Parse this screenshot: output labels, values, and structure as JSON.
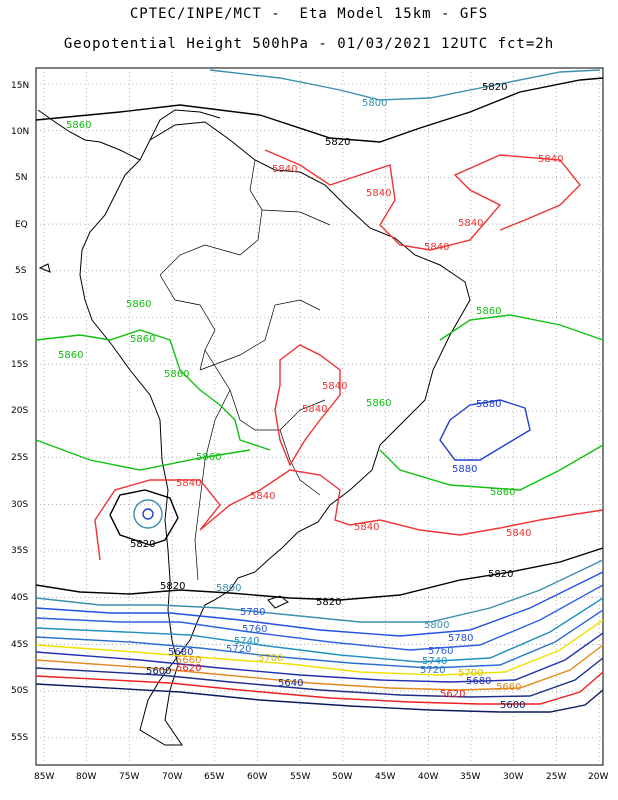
{
  "title": {
    "line1": "CPTEC/INPE/MCT -  Eta Model 15km - GFS",
    "line2": "Geopotential Height 500hPa - 01/03/2021 12UTC fct=2h"
  },
  "axes": {
    "lat_labels": [
      "15N",
      "10N",
      "5N",
      "EQ",
      "5S",
      "10S",
      "15S",
      "20S",
      "25S",
      "30S",
      "35S",
      "40S",
      "45S",
      "50S",
      "55S"
    ],
    "lon_labels": [
      "85W",
      "80W",
      "75W",
      "70W",
      "65W",
      "60W",
      "55W",
      "50W",
      "45W",
      "40W",
      "35W",
      "30W",
      "25W",
      "20W"
    ]
  },
  "colors": {
    "c5580": "#0a1a5e",
    "c5600": "#1a1a1a",
    "c5620": "#ee2020",
    "c5640": "#1c2e8a",
    "c5660": "#e08a20",
    "c5680": "#2030b0",
    "c5700": "#f0e000",
    "c5720": "#2a6fd0",
    "c5740": "#2090c0",
    "c5760": "#3060e0",
    "c5780": "#2050e0",
    "c5800": "#3a90b0",
    "c5820": "#000000",
    "c5840": "#ee3333",
    "c5860": "#10c010",
    "c5880": "#1f3fd0",
    "land": "#000000",
    "grid": "#888888"
  },
  "contour_labels": {
    "l5820a": "5820",
    "l5800a": "5800",
    "l5820b": "5820",
    "l5860a": "5860",
    "l5840a": "5840",
    "l5840b": "5840",
    "l5840c": "5840",
    "l5840d": "5840",
    "l5840e": "5840",
    "l5860b": "5860",
    "l5860c": "5860",
    "l5860d": "5860",
    "l5860e": "5860",
    "l5860f": "5860",
    "l5860g": "5860",
    "l5860h": "5860",
    "l5860i": "5860",
    "l5840f": "5840",
    "l5840g": "5840",
    "l5840h": "5840",
    "l5840i": "5840",
    "l5840j": "5840",
    "l5840k": "5840",
    "l5880a": "5880",
    "l5880b": "5880",
    "l5820c": "5820",
    "l5820d": "5820",
    "l5820e": "5820",
    "l5820f": "5820",
    "l5800b": "5800",
    "l5800c": "5800",
    "l5780a": "5780",
    "l5780b": "5780",
    "l5760a": "5760",
    "l5760b": "5760",
    "l5740a": "5740",
    "l5740b": "5740",
    "l5720a": "5720",
    "l5720b": "5720",
    "l5700a": "5700",
    "l5700b": "5700",
    "l5680a": "5680",
    "l5680b": "5680",
    "l5660a": "5660",
    "l5660b": "5660",
    "l5640a": "5640",
    "l5620a": "5620",
    "l5620b": "5620",
    "l5600a": "5600",
    "l5600b": "5600"
  }
}
